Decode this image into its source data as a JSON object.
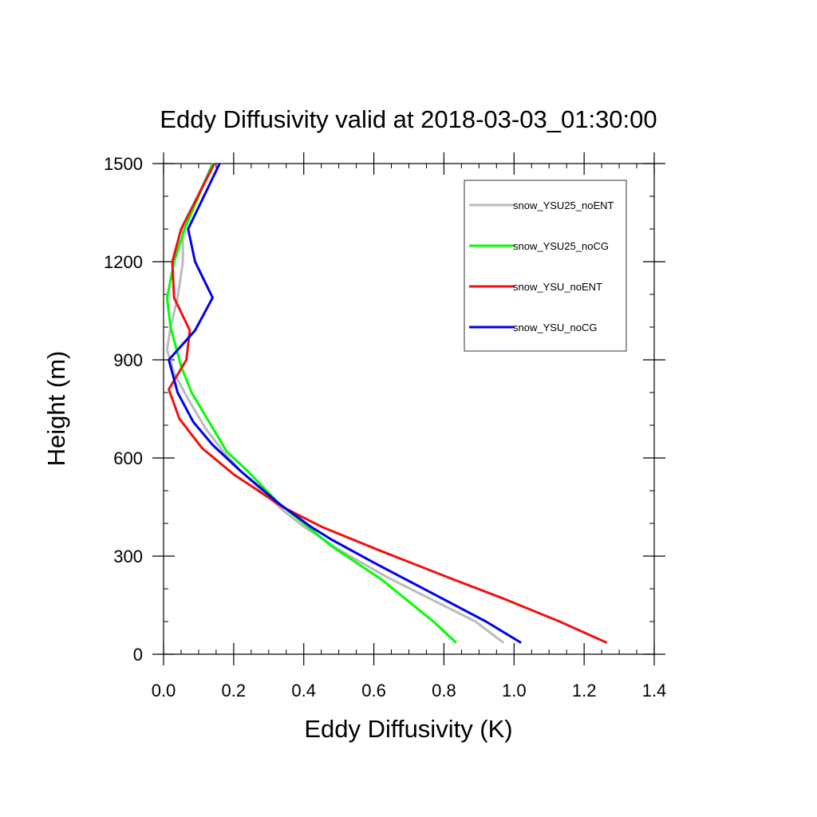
{
  "chart_data": {
    "type": "line",
    "title": "Eddy Diffusivity valid at 2018-03-03_01:30:00",
    "xlabel": "Eddy Diffusivity (K)",
    "ylabel": "Height (m)",
    "xlim": [
      0,
      1.4
    ],
    "ylim": [
      0,
      1500
    ],
    "xticks": [
      "0.0",
      "0.2",
      "0.4",
      "0.6",
      "0.8",
      "1.0",
      "1.2",
      "1.4"
    ],
    "xtick_values": [
      0,
      0.2,
      0.4,
      0.6,
      0.8,
      1.0,
      1.2,
      1.4
    ],
    "yticks": [
      "0",
      "300",
      "600",
      "900",
      "1200",
      "1500"
    ],
    "ytick_values": [
      0,
      300,
      600,
      900,
      1200,
      1500
    ],
    "grid": false,
    "legend_position": "top-right",
    "series": [
      {
        "name": "snow_YSU25_noENT",
        "color": "#bbbbbb",
        "points": [
          [
            0.97,
            35
          ],
          [
            0.89,
            100
          ],
          [
            0.76,
            170
          ],
          [
            0.63,
            240
          ],
          [
            0.5,
            320
          ],
          [
            0.4,
            390
          ],
          [
            0.34,
            440
          ],
          [
            0.28,
            500
          ],
          [
            0.22,
            560
          ],
          [
            0.17,
            620
          ],
          [
            0.12,
            690
          ],
          [
            0.07,
            780
          ],
          [
            0.03,
            860
          ],
          [
            0.01,
            930
          ],
          [
            0.02,
            1000
          ],
          [
            0.04,
            1090
          ],
          [
            0.055,
            1200
          ],
          [
            0.055,
            1300
          ],
          [
            0.14,
            1500
          ]
        ]
      },
      {
        "name": "snow_YSU25_noCG",
        "color": "#00ff00",
        "points": [
          [
            0.835,
            35
          ],
          [
            0.77,
            100
          ],
          [
            0.62,
            230
          ],
          [
            0.48,
            330
          ],
          [
            0.4,
            400
          ],
          [
            0.33,
            460
          ],
          [
            0.24,
            560
          ],
          [
            0.18,
            620
          ],
          [
            0.13,
            710
          ],
          [
            0.08,
            800
          ],
          [
            0.05,
            880
          ],
          [
            0.02,
            1000
          ],
          [
            0.01,
            1090
          ],
          [
            0.03,
            1200
          ],
          [
            0.06,
            1300
          ],
          [
            0.14,
            1500
          ]
        ]
      },
      {
        "name": "snow_YSU_noENT",
        "color": "#ee1111",
        "points": [
          [
            1.265,
            35
          ],
          [
            1.13,
            100
          ],
          [
            0.97,
            170
          ],
          [
            0.8,
            240
          ],
          [
            0.61,
            320
          ],
          [
            0.45,
            390
          ],
          [
            0.34,
            450
          ],
          [
            0.2,
            550
          ],
          [
            0.11,
            630
          ],
          [
            0.045,
            720
          ],
          [
            0.015,
            810
          ],
          [
            0.065,
            900
          ],
          [
            0.075,
            990
          ],
          [
            0.03,
            1090
          ],
          [
            0.025,
            1200
          ],
          [
            0.05,
            1300
          ],
          [
            0.145,
            1500
          ]
        ]
      },
      {
        "name": "snow_YSU_noCG",
        "color": "#0000ee",
        "points": [
          [
            1.02,
            35
          ],
          [
            0.92,
            100
          ],
          [
            0.76,
            190
          ],
          [
            0.6,
            280
          ],
          [
            0.48,
            350
          ],
          [
            0.42,
            390
          ],
          [
            0.33,
            460
          ],
          [
            0.22,
            560
          ],
          [
            0.14,
            640
          ],
          [
            0.085,
            710
          ],
          [
            0.04,
            800
          ],
          [
            0.015,
            900
          ],
          [
            0.09,
            990
          ],
          [
            0.14,
            1090
          ],
          [
            0.09,
            1200
          ],
          [
            0.07,
            1300
          ],
          [
            0.16,
            1500
          ]
        ]
      }
    ]
  }
}
